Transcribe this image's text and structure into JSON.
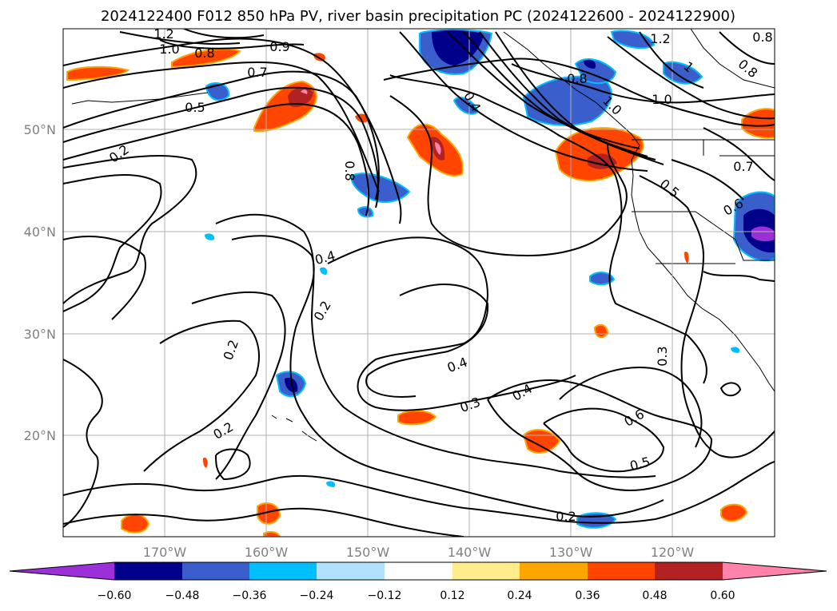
{
  "title": "2024122400 F012 850 hPa PV, river basin precipitation PC (2024122600 - 2024122900)",
  "lat_labels": [
    "50°N",
    "40°N",
    "30°N",
    "20°N"
  ],
  "lon_labels": [
    "170°W",
    "160°W",
    "150°W",
    "140°W",
    "130°W",
    "120°W"
  ],
  "colorbar": {
    "tick_labels": [
      "−0.60",
      "−0.48",
      "−0.36",
      "−0.24",
      "−0.12",
      "0.12",
      "0.24",
      "0.36",
      "0.48",
      "0.60"
    ],
    "colors": [
      "#9b30d9",
      "#00008b",
      "#3a5fcd",
      "#00bfff",
      "#b0e2ff",
      "#ffffff",
      "#ffec8b",
      "#ffa500",
      "#ff4500",
      "#b22222",
      "#ff82ab"
    ]
  },
  "contour_labels": [
    {
      "text": "1.2"
    },
    {
      "text": "1.0"
    },
    {
      "text": "0.8"
    },
    {
      "text": "0.7"
    },
    {
      "text": "0.9"
    },
    {
      "text": "0.5"
    },
    {
      "text": "0.2"
    },
    {
      "text": "0.8"
    },
    {
      "text": "0.4"
    },
    {
      "text": "0.2"
    },
    {
      "text": "0.2"
    },
    {
      "text": "0.2"
    },
    {
      "text": "0.4"
    },
    {
      "text": "0.3"
    },
    {
      "text": "0.4"
    },
    {
      "text": "0.6"
    },
    {
      "text": "0.5"
    },
    {
      "text": "0.2"
    },
    {
      "text": "0.3"
    },
    {
      "text": "0.4"
    },
    {
      "text": "0.8"
    },
    {
      "text": "1.0"
    },
    {
      "text": "1.0"
    },
    {
      "text": "0.7"
    },
    {
      "text": "0.5"
    },
    {
      "text": "0.6"
    },
    {
      "text": "1.2"
    },
    {
      "text": "0.8"
    },
    {
      "text": "0.8"
    },
    {
      "text": "1"
    }
  ]
}
